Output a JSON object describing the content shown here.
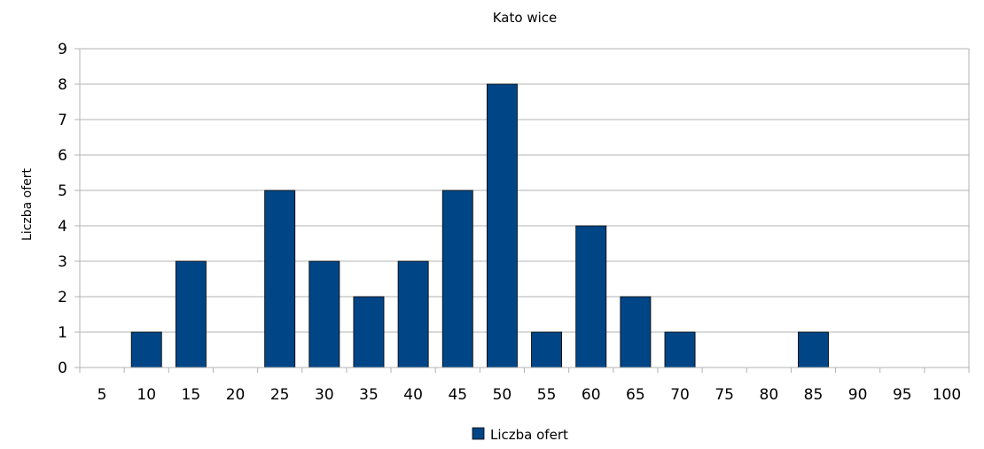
{
  "chart_data": {
    "type": "bar",
    "title": "Kato wice",
    "xlabel": "",
    "ylabel": "Liczba ofert",
    "categories": [
      "5",
      "10",
      "15",
      "20",
      "25",
      "30",
      "35",
      "40",
      "45",
      "50",
      "55",
      "60",
      "65",
      "70",
      "75",
      "80",
      "85",
      "90",
      "95",
      "100"
    ],
    "series": [
      {
        "name": "Liczba ofert",
        "color": "#004586",
        "values": [
          0,
          1,
          3,
          0,
          5,
          3,
          2,
          3,
          5,
          8,
          1,
          4,
          2,
          1,
          0,
          0,
          1,
          0,
          0,
          0
        ]
      }
    ],
    "ylim": [
      0,
      9
    ],
    "yticks": [
      "0",
      "1",
      "2",
      "3",
      "4",
      "5",
      "6",
      "7",
      "8",
      "9"
    ],
    "grid": true,
    "legend_position": "bottom"
  }
}
